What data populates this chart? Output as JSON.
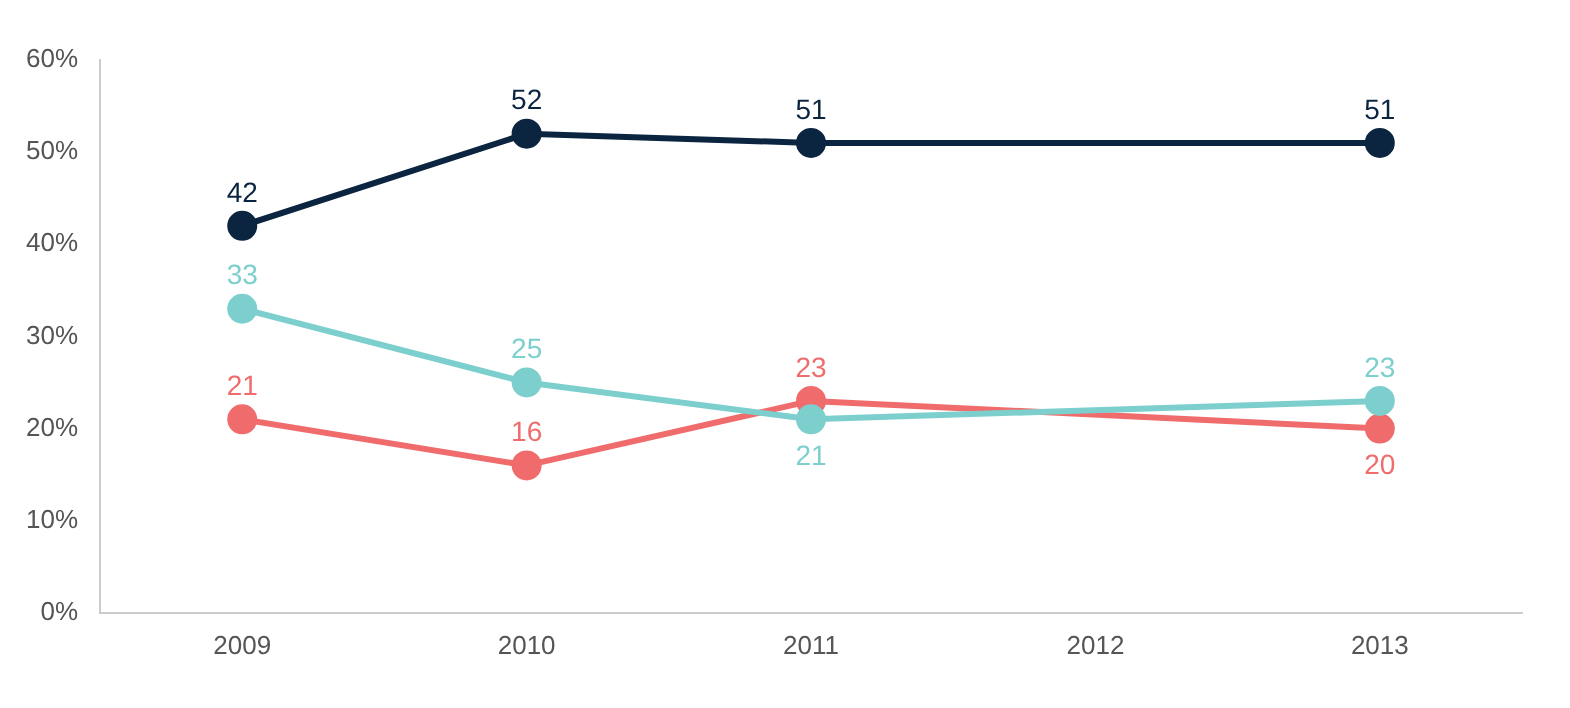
{
  "chart_data": {
    "type": "line",
    "categories": [
      "2009",
      "2010",
      "2011",
      "2012",
      "2013"
    ],
    "series": [
      {
        "color": "#0b2540",
        "values": [
          42,
          52,
          51,
          null,
          51
        ]
      },
      {
        "color": "#7ccfcd",
        "values": [
          33,
          25,
          21,
          null,
          23
        ]
      },
      {
        "color": "#f06c6c",
        "values": [
          21,
          16,
          23,
          null,
          20
        ]
      }
    ],
    "ylim": [
      0,
      60
    ],
    "yticks": [
      {
        "value": 0,
        "label": "0%"
      },
      {
        "value": 10,
        "label": "10%"
      },
      {
        "value": 20,
        "label": "20%"
      },
      {
        "value": 30,
        "label": "30%"
      },
      {
        "value": 40,
        "label": "40%"
      },
      {
        "value": 50,
        "label": "50%"
      },
      {
        "value": 60,
        "label": "60%"
      }
    ],
    "grid": false,
    "legend": false,
    "marker": "circle",
    "line_style": "solid",
    "data_labels": true
  }
}
